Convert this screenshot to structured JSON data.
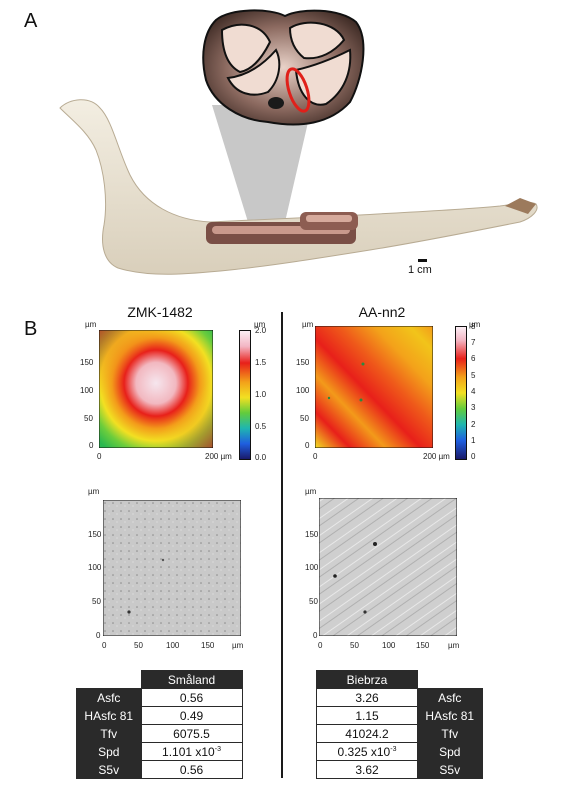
{
  "panel_a": {
    "label": "A",
    "scale_bar": "1 cm"
  },
  "panel_b": {
    "label": "B",
    "left": {
      "title": "ZMK-1482",
      "map_unit_y": "µm",
      "map_unit_cb": "µm",
      "map_y_ticks": [
        "150",
        "100",
        "50",
        "0"
      ],
      "map_x_ticks": [
        "0",
        "200 µm"
      ],
      "colorbar_ticks": [
        "2.0",
        "1.5",
        "1.0",
        "0.5",
        "0.0"
      ],
      "relief_unit_y": "µm",
      "relief_y_ticks": [
        "150",
        "100",
        "50",
        "0"
      ],
      "relief_x_ticks": [
        "0",
        "50",
        "100",
        "150",
        "µm"
      ]
    },
    "right": {
      "title": "AA-nn2",
      "map_unit_y": "µm",
      "map_unit_cb": "µm",
      "map_y_ticks": [
        "150",
        "100",
        "50",
        "0"
      ],
      "map_x_ticks": [
        "0",
        "200 µm"
      ],
      "colorbar_ticks": [
        "8",
        "7",
        "6",
        "5",
        "4",
        "3",
        "2",
        "1",
        "0"
      ],
      "relief_unit_y": "µm",
      "relief_y_ticks": [
        "150",
        "100",
        "50",
        "0"
      ],
      "relief_x_ticks": [
        "0",
        "50",
        "100",
        "150",
        "µm"
      ]
    }
  },
  "table_left": {
    "header": "Småland",
    "rows": [
      {
        "param": "Asfc",
        "value": "0.56"
      },
      {
        "param": "HAsfc 81",
        "value": "0.49"
      },
      {
        "param": "Tfv",
        "value": "6075.5"
      },
      {
        "param": "Spd",
        "value": "1.101 x10",
        "exp": "-3"
      },
      {
        "param": "S5v",
        "value": "0.56"
      }
    ]
  },
  "table_right": {
    "header": "Biebrza",
    "rows": [
      {
        "param": "Asfc",
        "value": "3.26"
      },
      {
        "param": "HAsfc 81",
        "value": "1.15"
      },
      {
        "param": "Tfv",
        "value": "41024.2"
      },
      {
        "param": "Spd",
        "value": "0.325 x10",
        "exp": "-3"
      },
      {
        "param": "S5v",
        "value": "3.62"
      }
    ]
  },
  "colors": {
    "header_bg": "#2a2a2a",
    "highlight": "#e0201a"
  }
}
